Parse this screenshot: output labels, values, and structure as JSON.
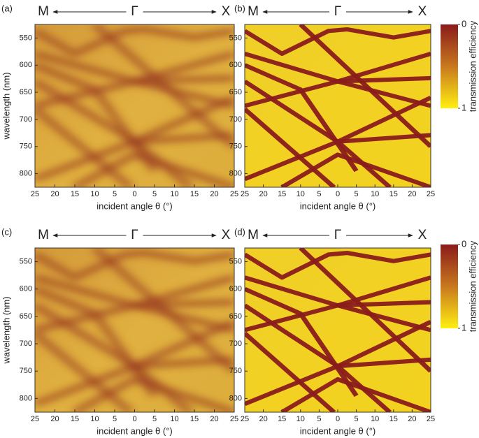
{
  "chart_data": [
    {
      "type": "heatmap",
      "panel_label": "(a)",
      "direction_labels": [
        "M",
        "Γ",
        "X"
      ],
      "xlabel": "incident angle θ (°)",
      "ylabel": "wavelength (nm)",
      "xlim": [
        -25,
        25
      ],
      "xticks": [
        {
          "value": -25,
          "label": "25"
        },
        {
          "value": -20,
          "label": "20"
        },
        {
          "value": -15,
          "label": "15"
        },
        {
          "value": -10,
          "label": "10"
        },
        {
          "value": -5,
          "label": "5"
        },
        0,
        5,
        10,
        15,
        20,
        25
      ],
      "ylim": [
        525,
        825
      ],
      "y_inverted": true,
      "yticks": [
        550,
        600,
        650,
        700,
        750,
        800
      ],
      "style": "broad"
    },
    {
      "type": "heatmap",
      "panel_label": "(b)",
      "direction_labels": [
        "M",
        "Γ",
        "X"
      ],
      "xlabel": "incident angle θ (°)",
      "xlim": [
        -25,
        25
      ],
      "xticks": [
        {
          "value": -25,
          "label": "25"
        },
        {
          "value": -20,
          "label": "20"
        },
        {
          "value": -15,
          "label": "15"
        },
        {
          "value": -10,
          "label": "10"
        },
        {
          "value": -5,
          "label": "5"
        },
        0,
        5,
        10,
        15,
        20,
        25
      ],
      "ylim": [
        525,
        825
      ],
      "y_inverted": true,
      "yticks": [
        550,
        600,
        650,
        700,
        750,
        800
      ],
      "style": "sharp",
      "colorbar": {
        "label": "transmission efficiency",
        "ticks": [
          0,
          1
        ],
        "colors": [
          "#8a1b1b",
          "#c8781e",
          "#ffef10"
        ]
      }
    },
    {
      "type": "heatmap",
      "panel_label": "(c)",
      "direction_labels": [
        "M",
        "Γ",
        "X"
      ],
      "xlabel": "incident angle θ (°)",
      "ylabel": "wavelength (nm)",
      "xlim": [
        -25,
        25
      ],
      "xticks": [
        {
          "value": -25,
          "label": "25"
        },
        {
          "value": -20,
          "label": "20"
        },
        {
          "value": -15,
          "label": "15"
        },
        {
          "value": -10,
          "label": "10"
        },
        {
          "value": -5,
          "label": "5"
        },
        0,
        5,
        10,
        15,
        20,
        25
      ],
      "ylim": [
        525,
        825
      ],
      "y_inverted": true,
      "yticks": [
        550,
        600,
        650,
        700,
        750,
        800
      ],
      "style": "broad"
    },
    {
      "type": "heatmap",
      "panel_label": "(d)",
      "direction_labels": [
        "M",
        "Γ",
        "X"
      ],
      "xlabel": "incident angle θ (°)",
      "xlim": [
        -25,
        25
      ],
      "xticks": [
        {
          "value": -25,
          "label": "25"
        },
        {
          "value": -20,
          "label": "20"
        },
        {
          "value": -15,
          "label": "15"
        },
        {
          "value": -10,
          "label": "10"
        },
        {
          "value": -5,
          "label": "5"
        },
        0,
        5,
        10,
        15,
        20,
        25
      ],
      "ylim": [
        525,
        825
      ],
      "y_inverted": true,
      "yticks": [
        550,
        600,
        650,
        700,
        750,
        800
      ],
      "style": "sharp",
      "colorbar": {
        "label": "transmission efficiency",
        "ticks": [
          0,
          1
        ],
        "colors": [
          "#8a1b1b",
          "#c8781e",
          "#ffef10"
        ]
      }
    }
  ]
}
